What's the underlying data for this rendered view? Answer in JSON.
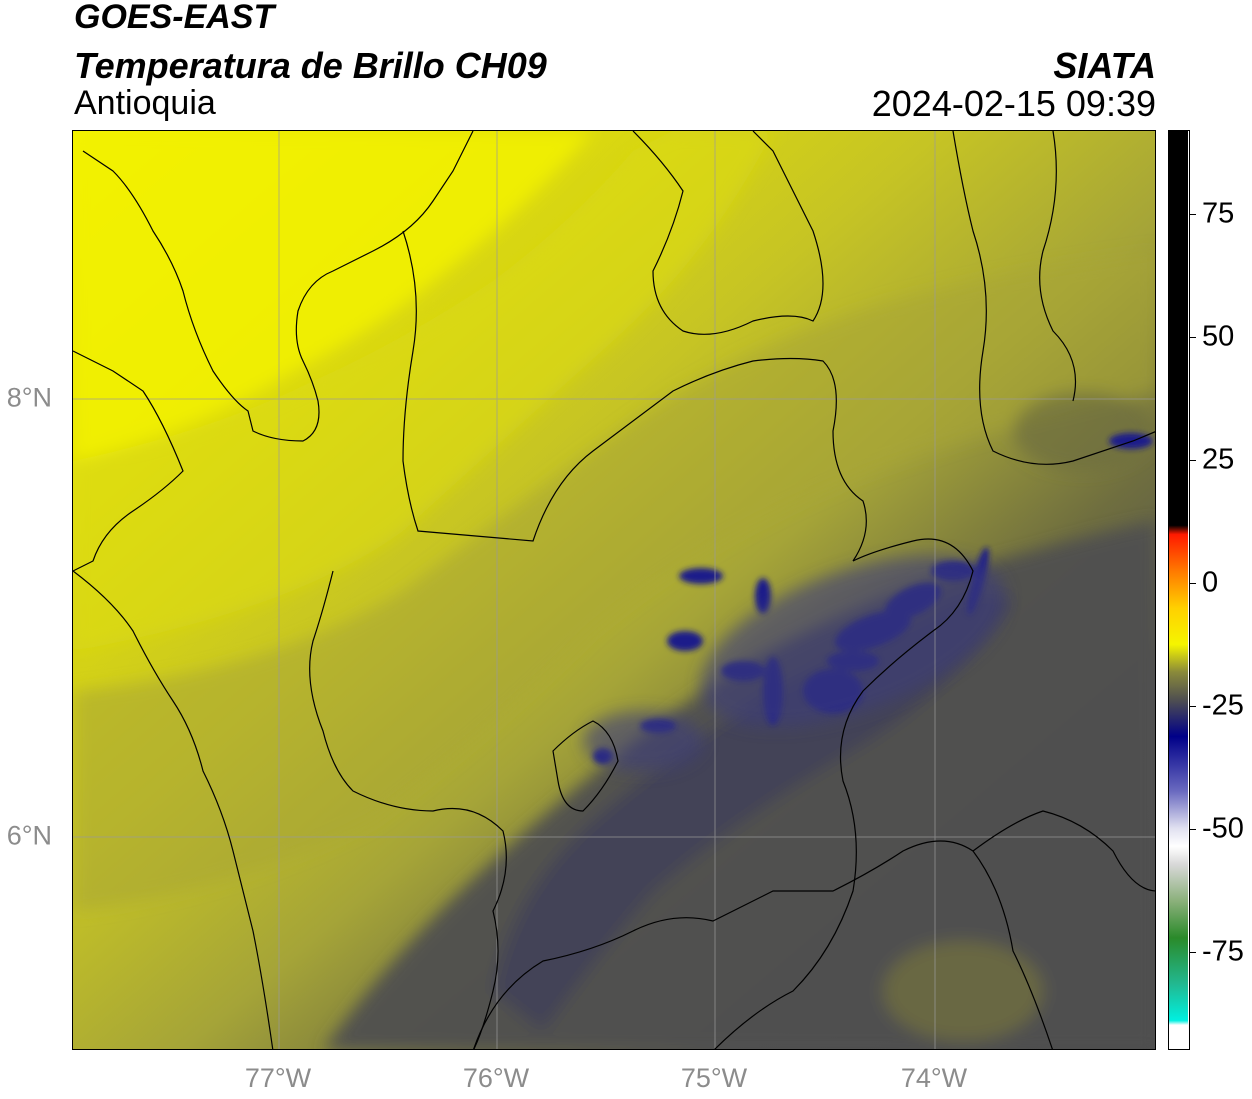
{
  "header": {
    "title_line1": "GOES-EAST",
    "title_line2": "Temperatura de Brillo CH09",
    "organization": "SIATA",
    "region": "Antioquia",
    "datetime": "2024-02-15 09:39"
  },
  "axes": {
    "lon_ticks": [
      "77°W",
      "76°W",
      "75°W",
      "74°W"
    ],
    "lat_ticks": [
      "8°N",
      "6°N"
    ]
  },
  "colorbar": {
    "tick_labels": [
      "75",
      "50",
      "25",
      "0",
      "-25",
      "-50",
      "-75"
    ],
    "tick_values": [
      75,
      50,
      25,
      0,
      -25,
      -50,
      -75
    ],
    "range": [
      -95,
      92
    ]
  },
  "colors": {
    "yellow_bright": "#f5f500",
    "olive": "#c3c222",
    "dark_gray": "#505050",
    "navy": "#1a1a8c",
    "black": "#000000"
  }
}
